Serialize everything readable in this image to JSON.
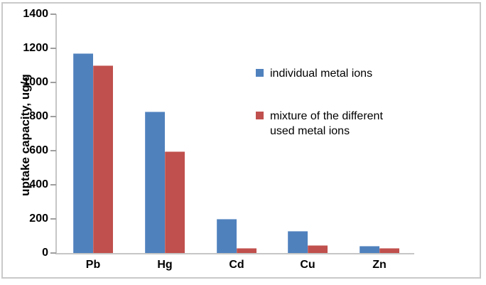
{
  "chart_data": {
    "type": "bar",
    "title": "",
    "categories": [
      "Pb",
      "Hg",
      "Cd",
      "Cu",
      "Zn"
    ],
    "series": [
      {
        "name": "individual metal ions",
        "color": "#4F81BD",
        "values": [
          1170,
          830,
          200,
          130,
          40
        ]
      },
      {
        "name": "mixture of the different used metal ions",
        "color": "#C0504D",
        "values": [
          1100,
          595,
          30,
          45,
          30
        ]
      }
    ],
    "xlabel": "",
    "ylabel": "uptake capacity, ug/g",
    "ylim": [
      0,
      1400
    ],
    "yticks": [
      0,
      200,
      400,
      600,
      800,
      1000,
      1200,
      1400
    ],
    "grid": false,
    "legend_position": "inside-right"
  },
  "legend": {
    "items": [
      {
        "color": "#4F81BD",
        "lines": [
          "individual metal ions"
        ]
      },
      {
        "color": "#C0504D",
        "lines": [
          "mixture of the different",
          "used metal ions"
        ]
      }
    ]
  },
  "frame": {
    "border_color": "#C9C9C9",
    "background": "#FFFFFF"
  },
  "axis": {
    "line_color": "#C6C6C6",
    "tick_color": "#9E9E9E",
    "text_color": "#000000"
  }
}
